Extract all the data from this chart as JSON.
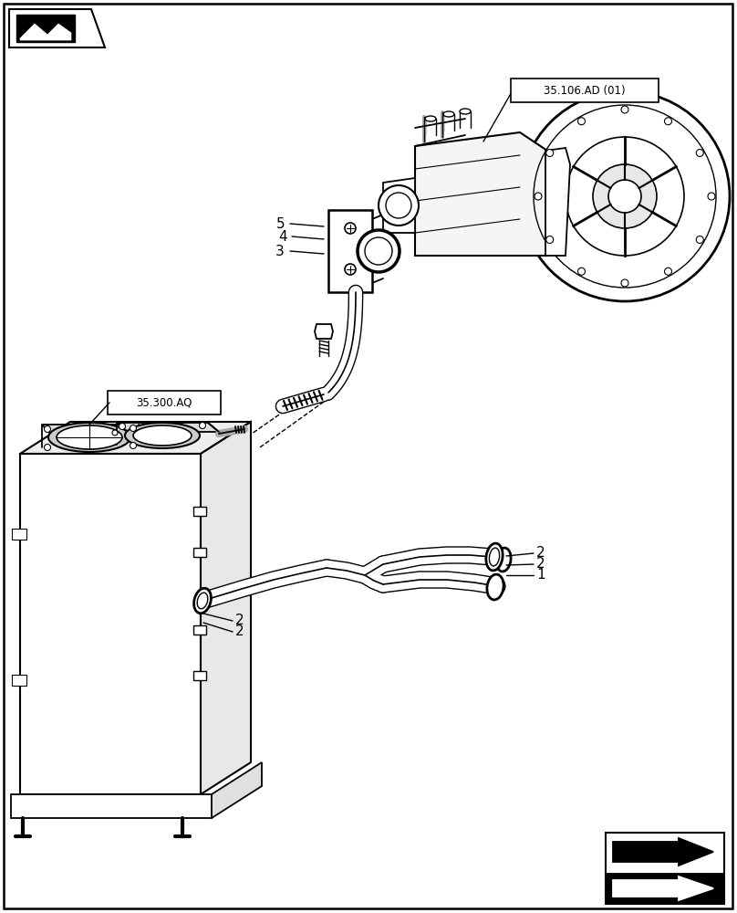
{
  "bg_color": "#ffffff",
  "fig_width": 8.08,
  "fig_height": 10.0,
  "dpi": 100,
  "label_35106": "35.106.AD (01)",
  "label_35300": "35.300.AQ"
}
